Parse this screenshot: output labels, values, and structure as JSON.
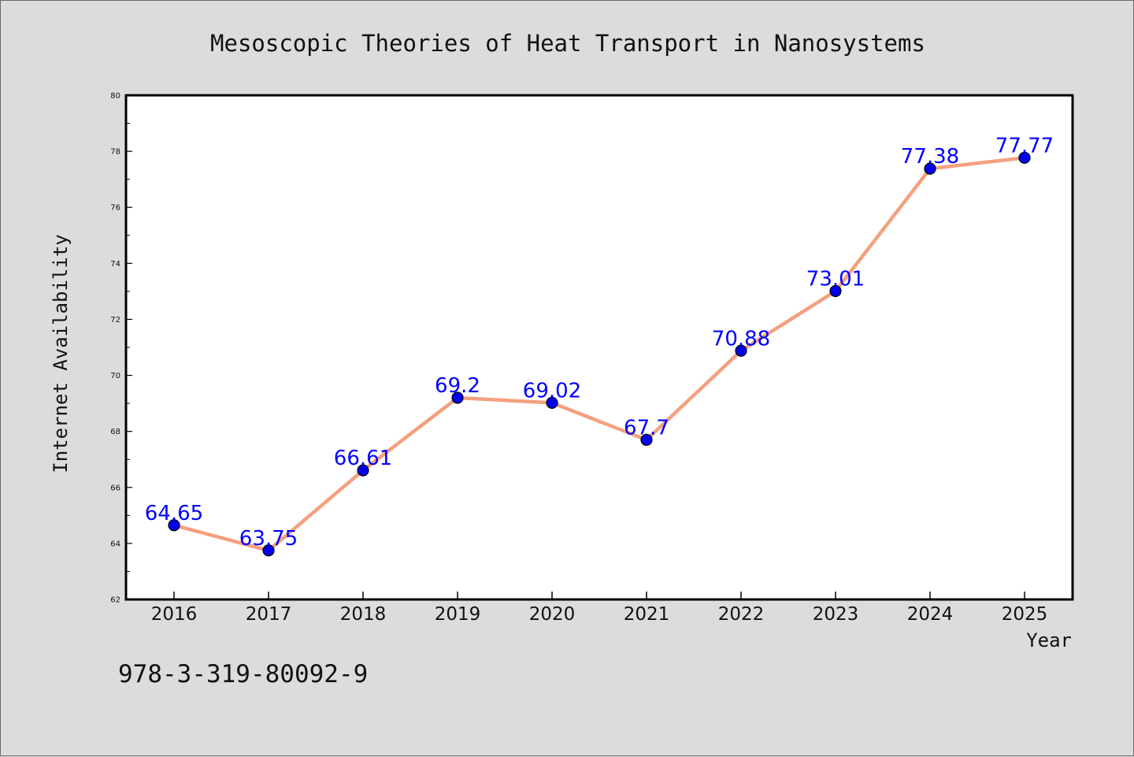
{
  "chart_data": {
    "type": "line",
    "title": "Mesoscopic Theories of Heat Transport in Nanosystems",
    "xlabel": "Year",
    "ylabel": "Internet Availability",
    "categories": [
      "2016",
      "2017",
      "2018",
      "2019",
      "2020",
      "2021",
      "2022",
      "2023",
      "2024",
      "2025"
    ],
    "series": [
      {
        "values": [
          64.65,
          63.75,
          66.61,
          69.2,
          69.02,
          67.7,
          70.88,
          73.01,
          77.38,
          77.77
        ],
        "labels": [
          "64.65",
          "63.75",
          "66.61",
          "69.2",
          "69.02",
          "67.7",
          "70.88",
          "73.01",
          "77.38",
          "77.77"
        ]
      }
    ],
    "ylim": [
      62,
      80
    ],
    "yticks": [
      "62",
      "64",
      "66",
      "68",
      "70",
      "72",
      "74",
      "76",
      "78",
      "80"
    ],
    "grid": false,
    "legend": "none",
    "colors": {
      "line": "#f4a07f",
      "marker": "#0000ee",
      "marker_edge": "#000000",
      "data_label": "#0000ff",
      "background": "#dcdcdc",
      "plot_background": "#ffffff"
    }
  },
  "footer": {
    "isbn": "978-3-319-80092-9"
  }
}
